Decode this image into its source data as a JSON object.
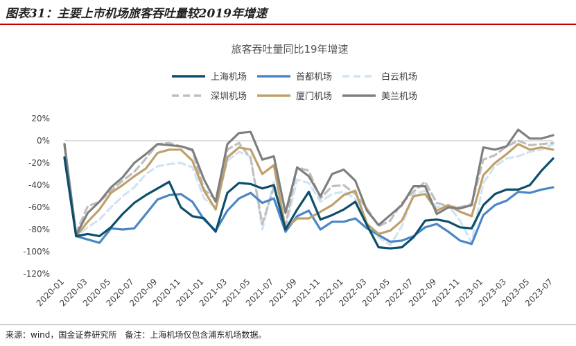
{
  "figure_title": "图表31：主要上市机场旅客吞吐量较2019年增速",
  "source_note": "来源：wind，国金证券研究所　备注：上海机场仅包含浦东机场数据。",
  "chart_data": {
    "type": "line",
    "title": "旅客吞吐量同比19年增速",
    "x": [
      "2020-01",
      "2020-02",
      "2020-03",
      "2020-04",
      "2020-05",
      "2020-06",
      "2020-07",
      "2020-08",
      "2020-09",
      "2020-10",
      "2020-11",
      "2020-12",
      "2021-01",
      "2021-02",
      "2021-03",
      "2021-04",
      "2021-05",
      "2021-06",
      "2021-07",
      "2021-08",
      "2021-09",
      "2021-10",
      "2021-11",
      "2021-12",
      "2022-01",
      "2022-02",
      "2022-03",
      "2022-04",
      "2022-05",
      "2022-06",
      "2022-07",
      "2022-08",
      "2022-09",
      "2022-10",
      "2022-11",
      "2022-12",
      "2023-01",
      "2023-02",
      "2023-03",
      "2023-04",
      "2023-05",
      "2023-06",
      "2023-07"
    ],
    "x_tick_labels": [
      "2020-01",
      "2020-03",
      "2020-05",
      "2020-07",
      "2020-09",
      "2020-11",
      "2021-01",
      "2021-03",
      "2021-05",
      "2021-07",
      "2021-09",
      "2021-11",
      "2022-01",
      "2022-03",
      "2022-05",
      "2022-07",
      "2022-09",
      "2022-11",
      "2023-01",
      "2023-03",
      "2023-05",
      "2023-07"
    ],
    "y_ticks": [
      "20%",
      "0%",
      "-20%",
      "-40%",
      "-60%",
      "-80%",
      "-100%",
      "-120%"
    ],
    "ylim": [
      -120,
      20
    ],
    "grid": false,
    "legend_position": "top",
    "series": [
      {
        "name": "上海机场",
        "color": "#0b4f6c",
        "dash": "solid",
        "values": [
          -15,
          -86,
          -84,
          -86,
          -78,
          -66,
          -56,
          -49,
          -43,
          -37,
          -60,
          -68,
          -70,
          -82,
          -47,
          -38,
          -39,
          -43,
          -40,
          -80,
          -62,
          -46,
          -71,
          -67,
          -62,
          -55,
          -76,
          -96,
          -97,
          -96,
          -87,
          -72,
          -71,
          -73,
          -78,
          -79,
          -58,
          -48,
          -44,
          -44,
          -40,
          -27,
          -16
        ]
      },
      {
        "name": "首都机场",
        "color": "#4a86c5",
        "dash": "solid",
        "values": [
          -15,
          -86,
          -89,
          -92,
          -79,
          -80,
          -79,
          -66,
          -53,
          -49,
          -48,
          -55,
          -71,
          -81,
          -63,
          -52,
          -47,
          -56,
          -52,
          -82,
          -68,
          -63,
          -80,
          -73,
          -73,
          -70,
          -79,
          -85,
          -91,
          -90,
          -86,
          -78,
          -75,
          -82,
          -90,
          -93,
          -67,
          -58,
          -54,
          -46,
          -47,
          -44,
          -42
        ]
      },
      {
        "name": "白云机场",
        "color": "#d0e4f4",
        "dash": "dash",
        "values": [
          -3,
          -86,
          -78,
          -71,
          -60,
          -50,
          -42,
          -30,
          -23,
          -21,
          -20,
          -24,
          -52,
          -60,
          -18,
          -10,
          -14,
          -80,
          -37,
          -79,
          -35,
          -38,
          -55,
          -48,
          -46,
          -52,
          -74,
          -87,
          -94,
          -77,
          -48,
          -45,
          -60,
          -58,
          -72,
          -92,
          -38,
          -23,
          -16,
          -14,
          -10,
          -8,
          -3
        ]
      },
      {
        "name": "深圳机场",
        "color": "#bfbfbf",
        "dash": "dash",
        "values": [
          -3,
          -83,
          -59,
          -55,
          -45,
          -36,
          -28,
          -16,
          -3,
          -2,
          -5,
          -9,
          -44,
          -53,
          -8,
          -2,
          -16,
          -75,
          -42,
          -77,
          -24,
          -27,
          -52,
          -41,
          -40,
          -48,
          -61,
          -77,
          -72,
          -56,
          -46,
          -37,
          -56,
          -59,
          -60,
          -57,
          -17,
          -13,
          -5,
          0,
          -4,
          -3,
          -2
        ]
      },
      {
        "name": "厦门机场",
        "color": "#bfa06a",
        "dash": "solid",
        "values": [
          -3,
          -86,
          -73,
          -62,
          -47,
          -40,
          -32,
          -25,
          -11,
          -8,
          -8,
          -18,
          -45,
          -62,
          -15,
          -6,
          -8,
          -30,
          -22,
          -79,
          -70,
          -70,
          -64,
          -58,
          -49,
          -45,
          -75,
          -84,
          -81,
          -72,
          -50,
          -48,
          -63,
          -58,
          -64,
          -68,
          -31,
          -20,
          -12,
          -3,
          -8,
          -6,
          -8
        ]
      },
      {
        "name": "美兰机场",
        "color": "#7f7f7f",
        "dash": "solid",
        "values": [
          -3,
          -85,
          -65,
          -55,
          -42,
          -33,
          -20,
          -12,
          -3,
          -4,
          -5,
          -8,
          -35,
          -55,
          -3,
          7,
          8,
          -17,
          -14,
          -65,
          -24,
          -32,
          -50,
          -30,
          -26,
          -36,
          -63,
          -76,
          -67,
          -58,
          -41,
          -41,
          -66,
          -60,
          -61,
          -58,
          -6,
          -8,
          -5,
          10,
          2,
          2,
          5
        ]
      }
    ]
  }
}
